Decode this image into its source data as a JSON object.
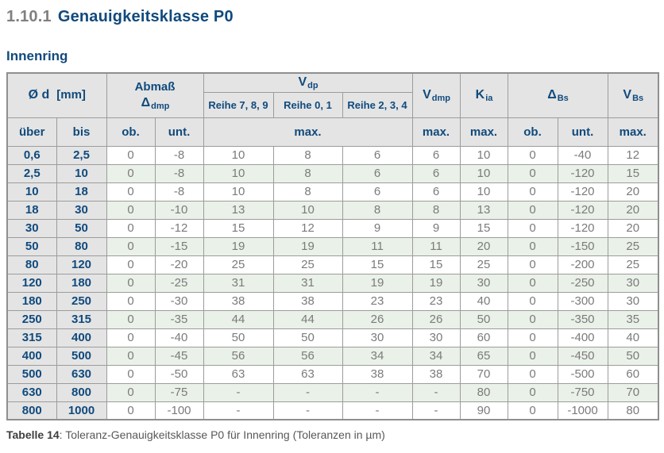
{
  "colors": {
    "accent_blue": "#104a7d",
    "header_gray": "#e4e4e4",
    "stripe_green": "#eaf1e8",
    "border_gray": "#9c9c9c",
    "data_text_gray": "#7b7b7b",
    "section_number_gray": "#808080"
  },
  "page": {
    "section_number": "1.10.1",
    "section_title": "Genauigkeitsklasse P0",
    "subtitle": "Innenring",
    "caption_bold": "Tabelle 14",
    "caption_rest": ": Toleranz-Genauigkeitsklasse P0 für Innenring (Toleranzen in µm)"
  },
  "table": {
    "groups": {
      "d": {
        "base": "Ø d",
        "unit": "[mm]"
      },
      "abmass": {
        "line1": "Abmaß",
        "base": "Δ",
        "sub": "dmp"
      },
      "vdp": {
        "base": "V",
        "sub": "dp"
      },
      "vdmp": {
        "base": "V",
        "sub": "dmp"
      },
      "kia": {
        "base": "K",
        "sub": "ia"
      },
      "dbs": {
        "base": "Δ",
        "sub": "Bs"
      },
      "vbs": {
        "base": "V",
        "sub": "Bs"
      }
    },
    "reihe_labels": [
      "Reihe 7, 8, 9",
      "Reihe 0, 1",
      "Reihe 2, 3, 4"
    ],
    "subheaders": [
      "über",
      "bis",
      "ob.",
      "unt.",
      "max.",
      "max.",
      "max.",
      "ob.",
      "unt.",
      "max."
    ],
    "rows": [
      [
        "0,6",
        "2,5",
        "0",
        "-8",
        "10",
        "8",
        "6",
        "6",
        "10",
        "0",
        "-40",
        "12"
      ],
      [
        "2,5",
        "10",
        "0",
        "-8",
        "10",
        "8",
        "6",
        "6",
        "10",
        "0",
        "-120",
        "15"
      ],
      [
        "10",
        "18",
        "0",
        "-8",
        "10",
        "8",
        "6",
        "6",
        "10",
        "0",
        "-120",
        "20"
      ],
      [
        "18",
        "30",
        "0",
        "-10",
        "13",
        "10",
        "8",
        "8",
        "13",
        "0",
        "-120",
        "20"
      ],
      [
        "30",
        "50",
        "0",
        "-12",
        "15",
        "12",
        "9",
        "9",
        "15",
        "0",
        "-120",
        "20"
      ],
      [
        "50",
        "80",
        "0",
        "-15",
        "19",
        "19",
        "11",
        "11",
        "20",
        "0",
        "-150",
        "25"
      ],
      [
        "80",
        "120",
        "0",
        "-20",
        "25",
        "25",
        "15",
        "15",
        "25",
        "0",
        "-200",
        "25"
      ],
      [
        "120",
        "180",
        "0",
        "-25",
        "31",
        "31",
        "19",
        "19",
        "30",
        "0",
        "-250",
        "30"
      ],
      [
        "180",
        "250",
        "0",
        "-30",
        "38",
        "38",
        "23",
        "23",
        "40",
        "0",
        "-300",
        "30"
      ],
      [
        "250",
        "315",
        "0",
        "-35",
        "44",
        "44",
        "26",
        "26",
        "50",
        "0",
        "-350",
        "35"
      ],
      [
        "315",
        "400",
        "0",
        "-40",
        "50",
        "50",
        "30",
        "30",
        "60",
        "0",
        "-400",
        "40"
      ],
      [
        "400",
        "500",
        "0",
        "-45",
        "56",
        "56",
        "34",
        "34",
        "65",
        "0",
        "-450",
        "50"
      ],
      [
        "500",
        "630",
        "0",
        "-50",
        "63",
        "63",
        "38",
        "38",
        "70",
        "0",
        "-500",
        "60"
      ],
      [
        "630",
        "800",
        "0",
        "-75",
        "-",
        "-",
        "-",
        "-",
        "80",
        "0",
        "-750",
        "70"
      ],
      [
        "800",
        "1000",
        "0",
        "-100",
        "-",
        "-",
        "-",
        "-",
        "90",
        "0",
        "-1000",
        "80"
      ]
    ]
  }
}
